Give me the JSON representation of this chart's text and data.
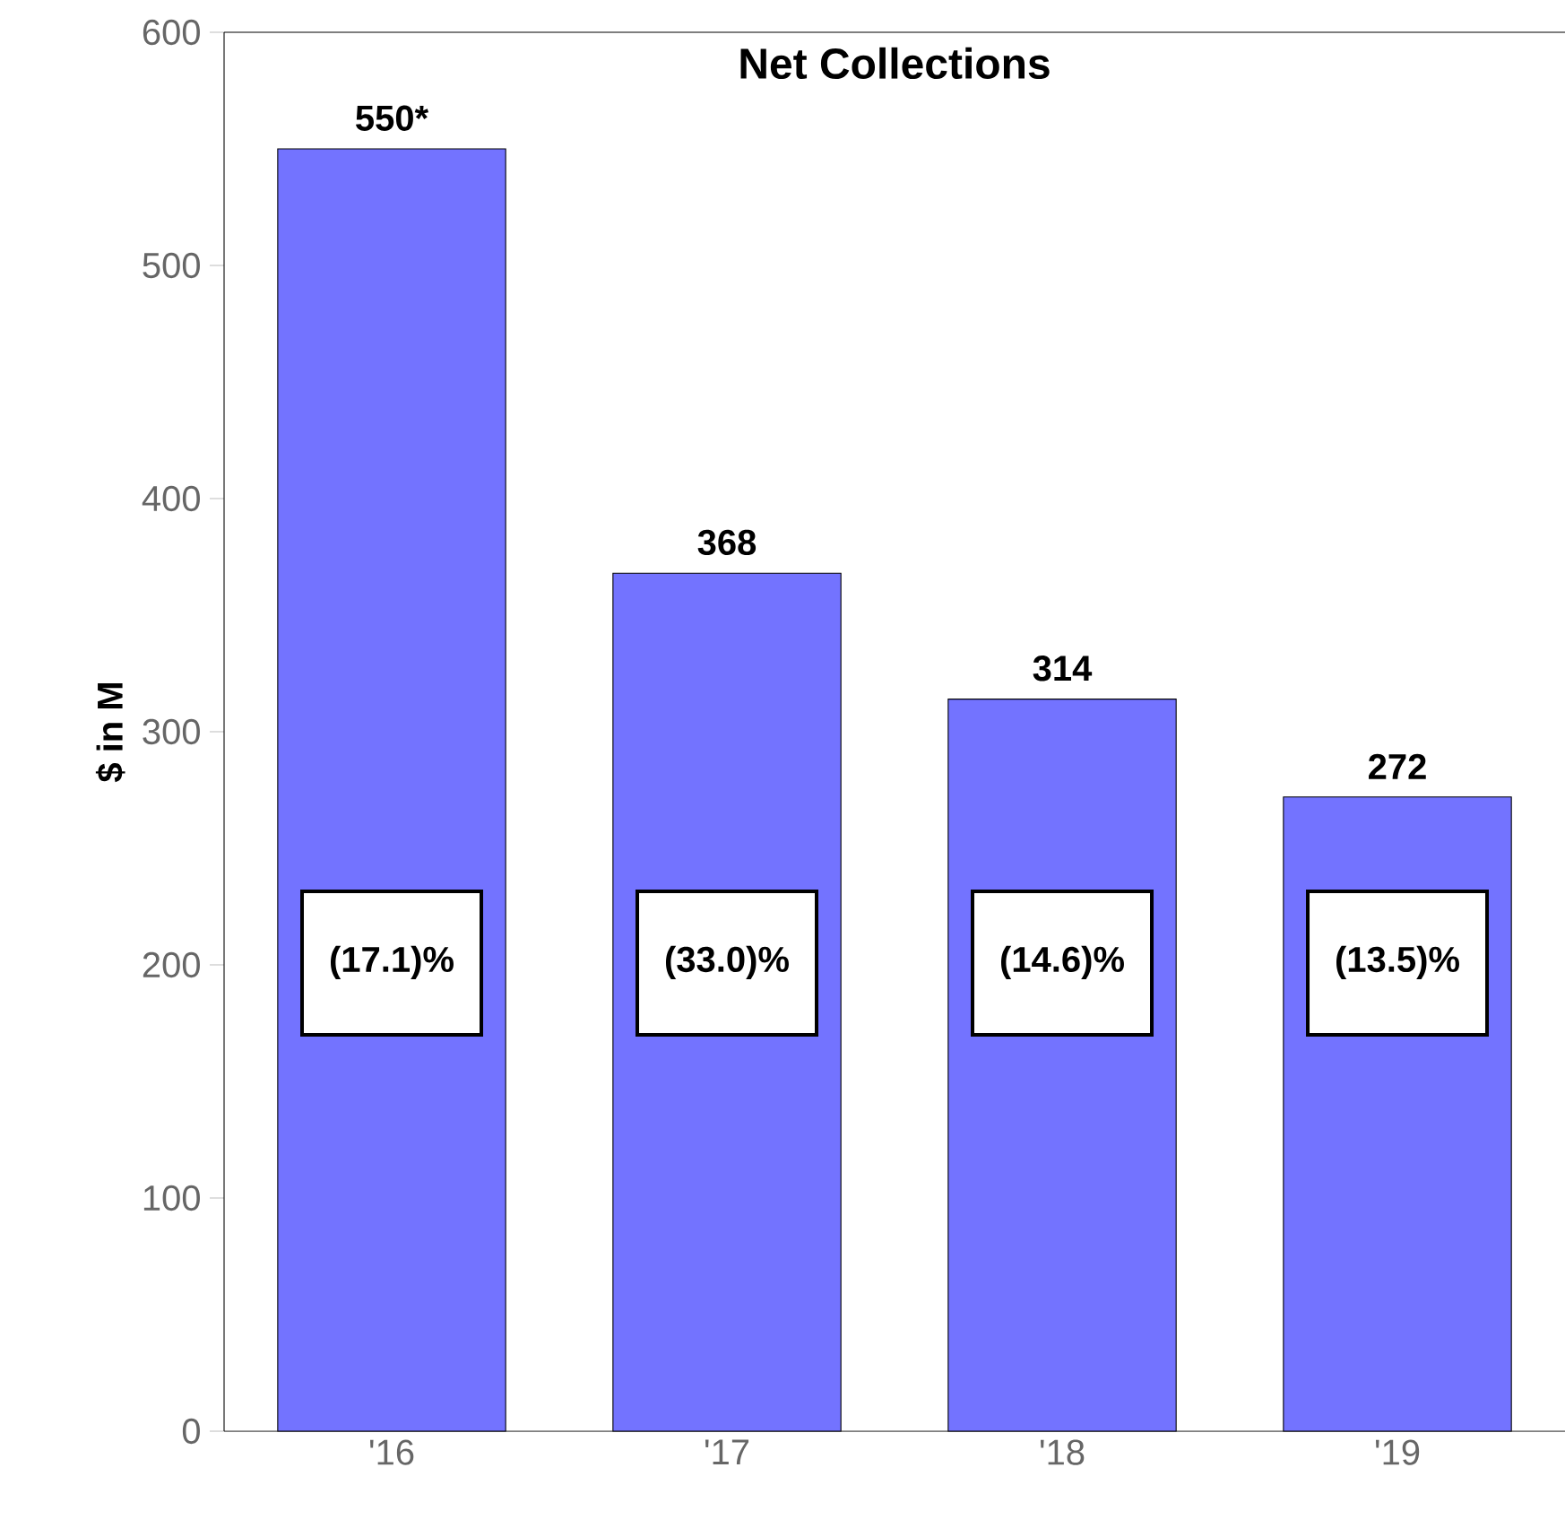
{
  "chart_data": {
    "type": "bar",
    "title": "Net Collections",
    "ylabel": "$ in M",
    "categories": [
      "'16",
      "'17",
      "'18",
      "'19"
    ],
    "values": [
      550,
      368,
      314,
      272
    ],
    "value_labels": [
      "550*",
      "368",
      "314",
      "272"
    ],
    "color": "#7373ff",
    "ylim": [
      0,
      600
    ],
    "yticks": [
      0,
      100,
      200,
      300,
      400,
      500,
      600
    ],
    "annotations": [
      "(17.1)%",
      "(33.0)%",
      "(14.6)%",
      "(13.5)%"
    ]
  }
}
